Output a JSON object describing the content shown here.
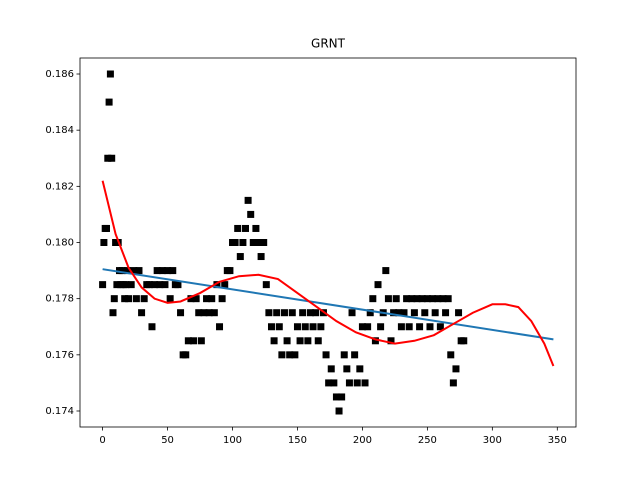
{
  "chart_data": {
    "type": "scatter",
    "title": "GRNT",
    "xlim": [
      -17.4,
      364.4
    ],
    "ylim": [
      0.17343,
      0.18657
    ],
    "xticks": [
      0,
      50,
      100,
      150,
      200,
      250,
      300,
      350
    ],
    "yticks": [
      0.174,
      0.176,
      0.178,
      {
        "value": 0.18,
        "label": "0.180"
      },
      0.182,
      0.184,
      0.186
    ],
    "series": [
      {
        "type": "scatter",
        "color": "#000000",
        "x": [
          0,
          1,
          2,
          3,
          4,
          5,
          6,
          7,
          8,
          9,
          10,
          11,
          12,
          13,
          14,
          15,
          16,
          17,
          18,
          19,
          20,
          22,
          24,
          26,
          28,
          30,
          32,
          34,
          36,
          38,
          40,
          42,
          44,
          46,
          48,
          50,
          52,
          54,
          56,
          58,
          60,
          62,
          64,
          66,
          68,
          70,
          72,
          74,
          76,
          78,
          80,
          82,
          84,
          86,
          88,
          90,
          92,
          94,
          96,
          98,
          100,
          102,
          104,
          106,
          108,
          110,
          112,
          114,
          116,
          118,
          120,
          122,
          124,
          126,
          128,
          130,
          132,
          134,
          136,
          138,
          140,
          142,
          144,
          146,
          148,
          150,
          152,
          154,
          156,
          158,
          160,
          162,
          164,
          166,
          168,
          170,
          172,
          174,
          176,
          178,
          180,
          182,
          184,
          186,
          188,
          190,
          192,
          194,
          196,
          198,
          200,
          202,
          204,
          206,
          208,
          210,
          212,
          214,
          216,
          218,
          220,
          222,
          224,
          226,
          228,
          230,
          232,
          234,
          236,
          238,
          240,
          242,
          244,
          246,
          248,
          250,
          252,
          254,
          256,
          258,
          260,
          262,
          264,
          266,
          268,
          270,
          272,
          274,
          276,
          278
        ],
        "values": [
          0.1785,
          0.18,
          0.1805,
          0.1805,
          0.183,
          0.185,
          0.186,
          0.183,
          0.1775,
          0.178,
          0.18,
          0.1785,
          0.18,
          0.179,
          0.1785,
          0.179,
          0.1785,
          0.178,
          0.1785,
          0.179,
          0.178,
          0.1785,
          0.179,
          0.178,
          0.179,
          0.1775,
          0.178,
          0.1785,
          0.1785,
          0.177,
          0.1785,
          0.179,
          0.1785,
          0.179,
          0.1785,
          0.179,
          0.178,
          0.179,
          0.1785,
          0.1785,
          0.1775,
          0.176,
          0.176,
          0.1765,
          0.178,
          0.1765,
          0.178,
          0.1775,
          0.1765,
          0.1775,
          0.178,
          0.1775,
          0.178,
          0.1775,
          0.1785,
          0.177,
          0.178,
          0.1785,
          0.179,
          0.179,
          0.18,
          0.18,
          0.1805,
          0.1795,
          0.18,
          0.1805,
          0.1815,
          0.181,
          0.18,
          0.1805,
          0.18,
          0.1795,
          0.18,
          0.1785,
          0.1775,
          0.177,
          0.1765,
          0.1775,
          0.177,
          0.176,
          0.1775,
          0.1765,
          0.176,
          0.1775,
          0.176,
          0.177,
          0.1765,
          0.1775,
          0.177,
          0.1765,
          0.1775,
          0.177,
          0.1775,
          0.1765,
          0.177,
          0.1775,
          0.176,
          0.175,
          0.1755,
          0.175,
          0.1745,
          0.174,
          0.1745,
          0.176,
          0.1755,
          0.175,
          0.1775,
          0.176,
          0.175,
          0.1755,
          0.177,
          0.175,
          0.177,
          0.1775,
          0.178,
          0.1765,
          0.1785,
          0.177,
          0.1775,
          0.179,
          0.178,
          0.1765,
          0.1775,
          0.178,
          0.1775,
          0.177,
          0.1775,
          0.178,
          0.177,
          0.178,
          0.1775,
          0.178,
          0.177,
          0.178,
          0.1775,
          0.178,
          0.177,
          0.178,
          0.1775,
          0.178,
          0.177,
          0.178,
          0.1775,
          0.178,
          0.176,
          0.175,
          0.1755,
          0.1775,
          0.1765,
          0.1765
        ]
      },
      {
        "type": "line",
        "color": "#1f77b4",
        "x": [
          0,
          347
        ],
        "values": [
          0.17905,
          0.17655
        ]
      },
      {
        "type": "line",
        "color": "#ff0000",
        "x": [
          0,
          10,
          20,
          30,
          40,
          50,
          60,
          75,
          90,
          105,
          120,
          135,
          150,
          165,
          180,
          195,
          210,
          225,
          240,
          255,
          270,
          285,
          300,
          310,
          320,
          330,
          340,
          347
        ],
        "values": [
          0.1822,
          0.1803,
          0.1791,
          0.1784,
          0.178,
          0.17785,
          0.1779,
          0.1782,
          0.1786,
          0.1788,
          0.17885,
          0.1787,
          0.1782,
          0.1777,
          0.1772,
          0.1768,
          0.17655,
          0.1764,
          0.1765,
          0.1767,
          0.1771,
          0.1775,
          0.1778,
          0.1778,
          0.1777,
          0.1772,
          0.1764,
          0.1756
        ]
      }
    ]
  }
}
